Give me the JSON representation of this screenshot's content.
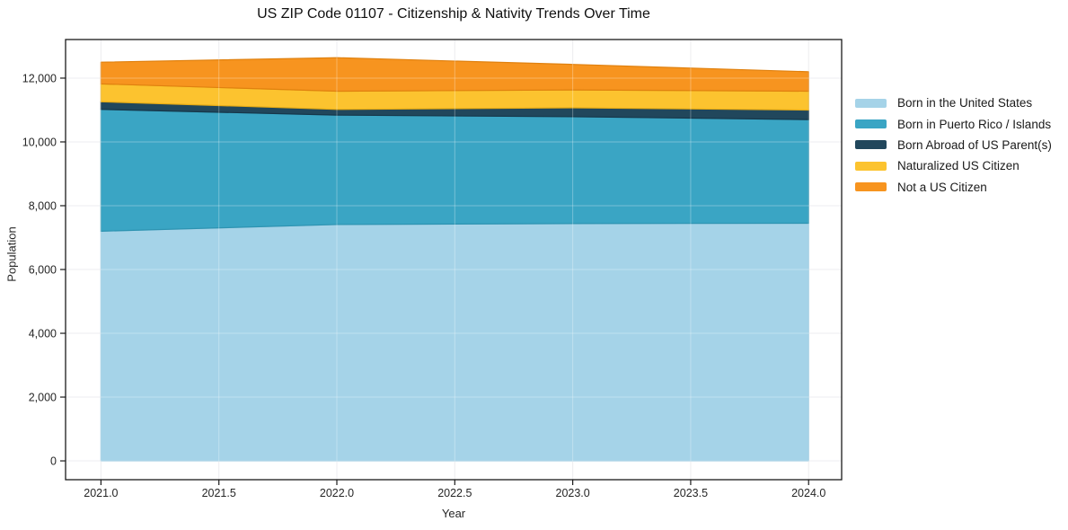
{
  "figure": {
    "title": "US ZIP Code 01107 - Citizenship & Nativity Trends Over Time"
  },
  "chart_data": {
    "type": "area",
    "stacked": true,
    "title": "US ZIP Code 01107 - Citizenship & Nativity Trends Over Time",
    "xlabel": "Year",
    "ylabel": "Population",
    "x": [
      2021,
      2022,
      2023,
      2024
    ],
    "series": [
      {
        "name": "Born in the United States",
        "color": "#a5d3e8",
        "edge": "#8fc4dd",
        "values": [
          7200,
          7410,
          7440,
          7450
        ]
      },
      {
        "name": "Born in Puerto Rico / Islands",
        "color": "#3aa5c4",
        "edge": "#2d93b1",
        "values": [
          3820,
          3430,
          3350,
          3250
        ]
      },
      {
        "name": "Born Abroad of US Parent(s)",
        "color": "#21475c",
        "edge": "#16374a",
        "values": [
          240,
          180,
          280,
          300
        ]
      },
      {
        "name": "Naturalized US Citizen",
        "color": "#fcc32f",
        "edge": "#e8ac15",
        "values": [
          560,
          570,
          560,
          590
        ]
      },
      {
        "name": "Not a US Citizen",
        "color": "#f7941f",
        "edge": "#e0810f",
        "values": [
          680,
          1050,
          800,
          610
        ]
      }
    ],
    "xticks": {
      "values": [
        2021.0,
        2021.5,
        2022.0,
        2022.5,
        2023.0,
        2023.5,
        2024.0
      ],
      "labels": [
        "2021.0",
        "2021.5",
        "2022.0",
        "2022.5",
        "2023.0",
        "2023.5",
        "2024.0"
      ]
    },
    "yticks": {
      "values": [
        0,
        2000,
        4000,
        6000,
        8000,
        10000,
        12000
      ],
      "labels": [
        "0",
        "2,000",
        "4,000",
        "6,000",
        "8,000",
        "10,000",
        "12,000"
      ]
    },
    "xlim": [
      2020.85,
      2024.14
    ],
    "ylim": [
      -590,
      13210
    ],
    "grid": true,
    "legend_position": "right",
    "colors": {
      "grid": "#e7e7ea",
      "spine": "#1a1a1a",
      "tick_label": "#262626"
    }
  }
}
